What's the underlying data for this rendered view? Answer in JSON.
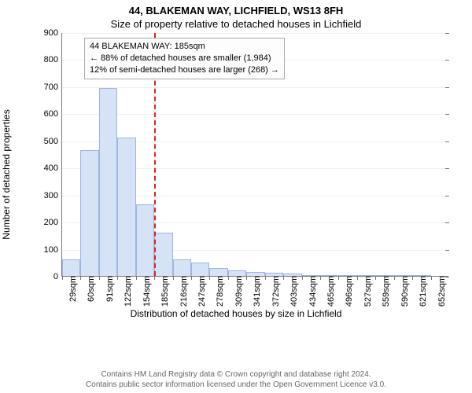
{
  "title_main": "44, BLAKEMAN WAY, LICHFIELD, WS13 8FH",
  "title_sub": "Size of property relative to detached houses in Lichfield",
  "y_axis_label": "Number of detached properties",
  "x_axis_label": "Distribution of detached houses by size in Lichfield",
  "chart": {
    "type": "histogram",
    "bar_fill": "#d6e2f5",
    "bar_stroke": "#9db6dd",
    "background": "#ffffff",
    "grid_color": "#eef0f0",
    "axis_color": "#777777",
    "ref_line_color": "#e02020",
    "y": {
      "min": 0,
      "max": 900,
      "step": 100
    },
    "x_labels": [
      "29sqm",
      "60sqm",
      "91sqm",
      "122sqm",
      "154sqm",
      "185sqm",
      "216sqm",
      "247sqm",
      "278sqm",
      "309sqm",
      "341sqm",
      "372sqm",
      "403sqm",
      "434sqm",
      "465sqm",
      "496sqm",
      "527sqm",
      "559sqm",
      "590sqm",
      "621sqm",
      "652sqm"
    ],
    "values": [
      60,
      465,
      695,
      510,
      265,
      160,
      60,
      50,
      30,
      20,
      15,
      12,
      10,
      0,
      0,
      0,
      0,
      0,
      0,
      0
    ],
    "ref_line_category_index": 5,
    "annotation": {
      "line1": "44 BLAKEMAN WAY: 185sqm",
      "line2": "← 88% of detached houses are smaller (1,984)",
      "line3": "12% of semi-detached houses are larger (268) →"
    }
  },
  "copyright": {
    "line1": "Contains HM Land Registry data © Crown copyright and database right 2024.",
    "line2": "Contains public sector information licensed under the Open Government Licence v3.0."
  }
}
